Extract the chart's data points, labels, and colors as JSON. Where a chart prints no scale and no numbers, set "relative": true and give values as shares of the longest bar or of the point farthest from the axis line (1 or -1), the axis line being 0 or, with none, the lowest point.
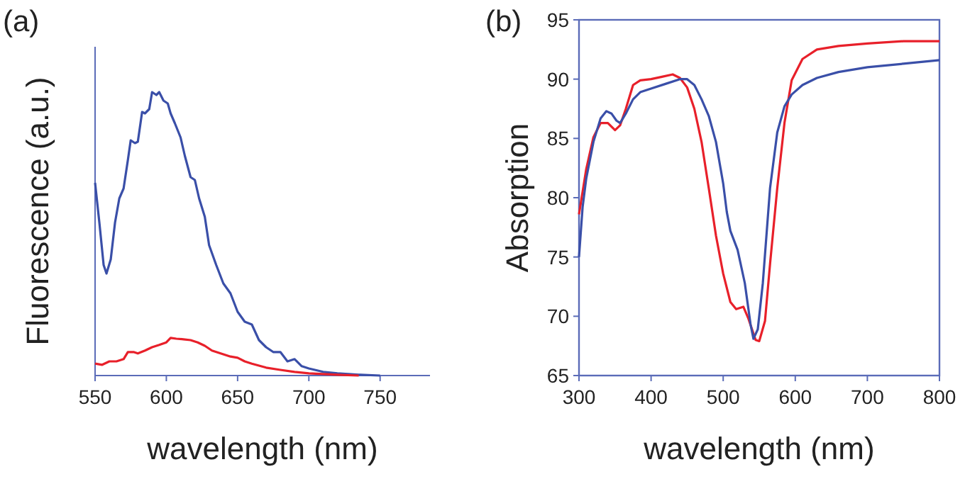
{
  "chart_data": [
    {
      "type": "line",
      "title": "(a)",
      "xlabel": "wavelength (nm)",
      "ylabel": "Fluorescence (a.u.)",
      "relative": true,
      "xlim": [
        550,
        785
      ],
      "xticks": [
        550,
        600,
        650,
        700,
        750
      ],
      "series": [
        {
          "color": "#3a4fa8",
          "x": [
            550,
            553,
            556,
            558,
            561,
            564,
            567,
            570,
            573,
            575,
            578,
            580,
            583,
            585,
            588,
            590,
            593,
            595,
            598,
            601,
            603,
            606,
            610,
            613,
            617,
            620,
            623,
            627,
            630,
            635,
            640,
            645,
            650,
            655,
            660,
            665,
            670,
            675,
            680,
            685,
            690,
            695,
            700,
            710,
            720,
            735,
            750
          ],
          "values": [
            0.68,
            0.54,
            0.39,
            0.36,
            0.41,
            0.54,
            0.625,
            0.66,
            0.76,
            0.83,
            0.82,
            0.825,
            0.93,
            0.925,
            0.94,
            1,
            0.99,
            1,
            0.97,
            0.96,
            0.925,
            0.89,
            0.84,
            0.775,
            0.7,
            0.69,
            0.625,
            0.56,
            0.46,
            0.39,
            0.325,
            0.29,
            0.225,
            0.19,
            0.18,
            0.125,
            0.1,
            0.083,
            0.083,
            0.05,
            0.058,
            0.033,
            0.025,
            0.013,
            0.008,
            0.003,
            0
          ]
        },
        {
          "color": "#e8202a",
          "x": [
            550,
            555,
            560,
            565,
            570,
            573,
            577,
            580,
            585,
            590,
            595,
            600,
            603,
            607,
            612,
            617,
            622,
            627,
            632,
            640,
            645,
            650,
            655,
            660,
            670,
            680,
            690,
            700,
            720,
            735
          ],
          "values": [
            0.042,
            0.038,
            0.05,
            0.05,
            0.058,
            0.083,
            0.083,
            0.078,
            0.088,
            0.1,
            0.108,
            0.117,
            0.133,
            0.13,
            0.128,
            0.125,
            0.117,
            0.105,
            0.088,
            0.075,
            0.067,
            0.063,
            0.05,
            0.042,
            0.028,
            0.02,
            0.013,
            0.008,
            0.003,
            0
          ]
        }
      ]
    },
    {
      "type": "line",
      "title": "(b)",
      "xlabel": "wavelength (nm)",
      "ylabel": "Absorption",
      "xlim": [
        300,
        800
      ],
      "xticks": [
        300,
        400,
        500,
        600,
        700,
        800
      ],
      "ylim": [
        65,
        95
      ],
      "yticks": [
        65,
        70,
        75,
        80,
        85,
        90,
        95
      ],
      "series": [
        {
          "color": "#e8202a",
          "x": [
            300,
            310,
            320,
            330,
            340,
            350,
            357,
            365,
            375,
            385,
            400,
            415,
            430,
            440,
            450,
            460,
            470,
            480,
            490,
            500,
            510,
            518,
            528,
            535,
            545,
            550,
            558,
            565,
            575,
            585,
            595,
            610,
            630,
            660,
            700,
            750,
            800
          ],
          "values": [
            78.6,
            82.4,
            85.1,
            86.3,
            86.3,
            85.7,
            86.1,
            87.5,
            89.5,
            89.9,
            90,
            90.2,
            90.4,
            90.1,
            89.3,
            87.5,
            84.7,
            80.8,
            76.8,
            73.6,
            71.2,
            70.6,
            70.8,
            69.8,
            68,
            67.9,
            69.6,
            74.4,
            80.8,
            86.3,
            89.9,
            91.7,
            92.5,
            92.8,
            93,
            93.2,
            93.2
          ]
        },
        {
          "color": "#3a4fa8",
          "x": [
            300,
            305,
            310,
            320,
            330,
            338,
            345,
            352,
            357,
            365,
            375,
            385,
            400,
            420,
            440,
            450,
            460,
            470,
            480,
            490,
            500,
            505,
            510,
            520,
            530,
            538,
            542,
            548,
            555,
            565,
            575,
            585,
            595,
            610,
            630,
            660,
            700,
            750,
            800
          ],
          "values": [
            75,
            79.2,
            81.6,
            84.7,
            86.7,
            87.3,
            87.1,
            86.5,
            86.3,
            87.1,
            88.3,
            88.9,
            89.2,
            89.6,
            90,
            90,
            89.5,
            88.3,
            86.9,
            84.7,
            81.2,
            78.8,
            77.2,
            75.6,
            72.8,
            69.3,
            68.1,
            68.9,
            72.8,
            80.8,
            85.5,
            87.7,
            88.7,
            89.5,
            90.1,
            90.6,
            91,
            91.3,
            91.6
          ]
        }
      ]
    }
  ]
}
